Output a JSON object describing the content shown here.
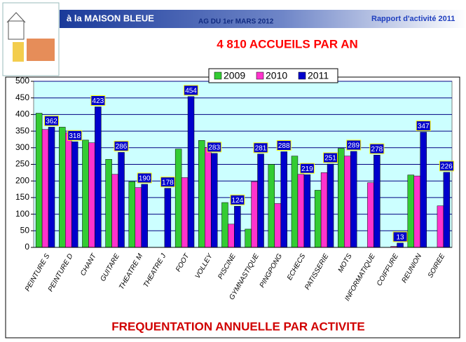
{
  "header": {
    "org": "à la MAISON BLEUE",
    "event": "AG DU 1er MARS 2012",
    "report": "Rapport d'activité 2011"
  },
  "chart_data": {
    "type": "bar",
    "title": "4 810 ACCUEILS PAR AN",
    "footer": "FREQUENTATION ANNUELLE PAR ACTIVITE",
    "categories": [
      "PEINTURE S",
      "PEINTURE D",
      "CHANT",
      "GUITARE",
      "THEATRE M",
      "THEATRE J",
      "FOOT",
      "VOLLEY",
      "PISCINE",
      "GYMNASTIQUE",
      "PINGPONG",
      "ECHECS",
      "PATISSERIE",
      "MOTS",
      "INFORMATIQUE",
      "COIFFURE",
      "REUNION",
      "SOIREE"
    ],
    "series": [
      {
        "name": "2009",
        "color": "#33cc33",
        "values": [
          404,
          362,
          323,
          265,
          198,
          0,
          296,
          322,
          135,
          55,
          250,
          275,
          172,
          298,
          0,
          0,
          218,
          0
        ]
      },
      {
        "name": "2010",
        "color": "#ff33cc",
        "values": [
          355,
          345,
          315,
          220,
          180,
          0,
          210,
          300,
          70,
          198,
          132,
          220,
          225,
          275,
          195,
          3,
          215,
          125
        ]
      },
      {
        "name": "2011",
        "color": "#0000cc",
        "values": [
          362,
          318,
          423,
          286,
          190,
          178,
          454,
          283,
          124,
          281,
          288,
          219,
          251,
          289,
          278,
          13,
          347,
          226
        ],
        "data_labels": true
      }
    ],
    "ylim": [
      0,
      500
    ],
    "yticks": [
      0,
      50,
      100,
      150,
      200,
      250,
      300,
      350,
      400,
      450,
      500
    ],
    "grid": true,
    "legend": "top"
  }
}
